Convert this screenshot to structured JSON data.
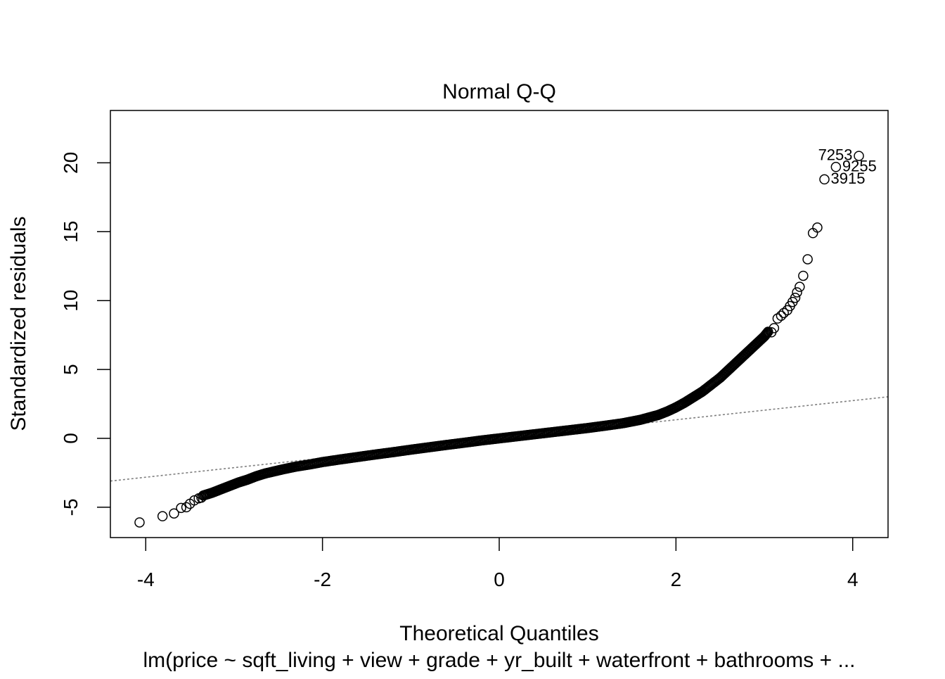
{
  "chart_data": {
    "type": "scatter",
    "title": "Normal Q-Q",
    "xlabel": "Theoretical Quantiles",
    "ylabel": "Standardized residuals",
    "subtitle": "lm(price ~ sqft_living + view + grade + yr_built + waterfront + bathrooms + ...",
    "xlim": [
      -4.4,
      4.4
    ],
    "ylim": [
      -7.2,
      23.8
    ],
    "x_ticks": [
      -4,
      -2,
      0,
      2,
      4
    ],
    "x_tick_labels": [
      "-4",
      "-2",
      "0",
      "2",
      "4"
    ],
    "y_ticks": [
      -5,
      0,
      5,
      10,
      15,
      20
    ],
    "y_tick_labels": [
      "-5",
      "0",
      "5",
      "10",
      "15",
      "20"
    ],
    "grid": false,
    "reference_line": {
      "intercept": -0.04,
      "slope": 0.695,
      "style": "dotted",
      "color": "#7f7f7f"
    },
    "point_color": "#000000",
    "point_style": "open-circle",
    "curve": {
      "x": [
        -3.35,
        -3.25,
        -3.15,
        -3.05,
        -2.95,
        -2.85,
        -2.75,
        -2.65,
        -2.55,
        -2.45,
        -2.3,
        -2.15,
        -2.0,
        -1.8,
        -1.6,
        -1.4,
        -1.2,
        -1.0,
        -0.8,
        -0.6,
        -0.4,
        -0.2,
        0.0,
        0.2,
        0.4,
        0.6,
        0.8,
        1.0,
        1.2,
        1.4,
        1.6,
        1.8,
        1.9,
        2.0,
        2.1,
        2.2,
        2.3,
        2.4,
        2.5,
        2.6,
        2.7,
        2.8,
        2.9,
        3.0,
        3.05
      ],
      "y": [
        -4.15,
        -3.95,
        -3.7,
        -3.45,
        -3.2,
        -3.0,
        -2.75,
        -2.55,
        -2.4,
        -2.25,
        -2.05,
        -1.9,
        -1.72,
        -1.53,
        -1.35,
        -1.17,
        -1.0,
        -0.82,
        -0.65,
        -0.48,
        -0.32,
        -0.15,
        0.0,
        0.15,
        0.3,
        0.45,
        0.6,
        0.75,
        0.92,
        1.1,
        1.35,
        1.7,
        1.95,
        2.25,
        2.6,
        3.0,
        3.4,
        3.9,
        4.4,
        5.0,
        5.6,
        6.2,
        6.8,
        7.4,
        7.8
      ]
    },
    "points": [
      {
        "x": -4.07,
        "y": -6.1
      },
      {
        "x": -3.81,
        "y": -5.65
      },
      {
        "x": -3.68,
        "y": -5.45
      },
      {
        "x": -3.6,
        "y": -5.05
      },
      {
        "x": -3.54,
        "y": -5.0
      },
      {
        "x": -3.5,
        "y": -4.75
      },
      {
        "x": -3.45,
        "y": -4.5
      },
      {
        "x": -3.4,
        "y": -4.35
      },
      {
        "x": -3.37,
        "y": -4.3
      },
      {
        "x": 3.08,
        "y": 7.7
      },
      {
        "x": 3.11,
        "y": 8.0
      },
      {
        "x": 3.15,
        "y": 8.7
      },
      {
        "x": 3.19,
        "y": 8.9
      },
      {
        "x": 3.22,
        "y": 9.1
      },
      {
        "x": 3.26,
        "y": 9.3
      },
      {
        "x": 3.29,
        "y": 9.6
      },
      {
        "x": 3.32,
        "y": 9.9
      },
      {
        "x": 3.35,
        "y": 10.2
      },
      {
        "x": 3.37,
        "y": 10.6
      },
      {
        "x": 3.4,
        "y": 11.0
      },
      {
        "x": 3.44,
        "y": 11.8
      },
      {
        "x": 3.49,
        "y": 13.0
      },
      {
        "x": 3.55,
        "y": 14.9
      },
      {
        "x": 3.6,
        "y": 15.3
      },
      {
        "x": 3.68,
        "y": 18.8
      },
      {
        "x": 3.81,
        "y": 19.7
      },
      {
        "x": 4.07,
        "y": 20.5
      }
    ],
    "labeled_points": [
      {
        "x": 4.07,
        "y": 20.5,
        "label": "7253",
        "side": "left"
      },
      {
        "x": 3.81,
        "y": 19.7,
        "label": "9255",
        "side": "right"
      },
      {
        "x": 3.68,
        "y": 18.8,
        "label": "3915",
        "side": "right"
      }
    ]
  }
}
